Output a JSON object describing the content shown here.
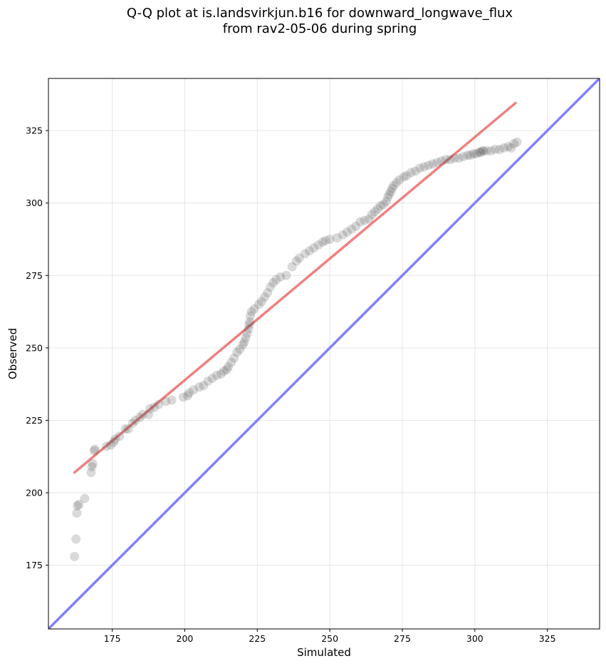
{
  "chart_data": {
    "type": "scatter",
    "title_lines": [
      "Q-Q plot at is.landsvirkjun.b16 for downward_longwave_flux",
      "from rav2-05-06 during spring"
    ],
    "xlabel": "Simulated",
    "ylabel": "Observed",
    "xlim": [
      153,
      343
    ],
    "ylim": [
      153,
      343
    ],
    "xticks": [
      175,
      200,
      225,
      250,
      275,
      300,
      325
    ],
    "yticks": [
      175,
      200,
      225,
      250,
      275,
      300,
      325
    ],
    "xtick_labels": [
      "175",
      "200",
      "225",
      "250",
      "275",
      "300",
      "325"
    ],
    "ytick_labels": [
      "175",
      "200",
      "225",
      "250",
      "275",
      "300",
      "325"
    ],
    "grid": true,
    "colors": {
      "points": "#555555",
      "fit_line": "#f08080",
      "identity_line": "#8080ff",
      "grid": "#e6e6e6"
    },
    "fit_line": {
      "x": [
        162,
        314
      ],
      "y": [
        207,
        334.5
      ]
    },
    "identity_line": {
      "x": [
        153,
        343
      ],
      "y": [
        153,
        343
      ]
    },
    "points": {
      "x": [
        162.0,
        162.5,
        162.8,
        163.0,
        163.5,
        165.5,
        167.7,
        168.0,
        168.3,
        168.8,
        169.0,
        173.0,
        174.5,
        175.5,
        176.0,
        177.5,
        179.5,
        180.5,
        182.0,
        183.0,
        184.5,
        185.5,
        187.5,
        188.0,
        189.5,
        191.0,
        193.5,
        195.5,
        199.5,
        201.0,
        201.5,
        203.0,
        205.0,
        206.5,
        208.0,
        209.5,
        211.0,
        212.5,
        213.5,
        214.5,
        215.0,
        216.0,
        217.0,
        218.0,
        219.0,
        220.0,
        220.5,
        221.0,
        221.5,
        222.0,
        222.2,
        222.4,
        222.6,
        223.0,
        224.0,
        225.5,
        226.5,
        227.5,
        228.5,
        229.5,
        230.5,
        231.5,
        233.0,
        235.0,
        237.0,
        238.5,
        239.5,
        241.5,
        243.0,
        244.5,
        246.0,
        247.5,
        248.5,
        250.0,
        252.5,
        254.5,
        256.0,
        257.5,
        259.0,
        260.5,
        262.0,
        263.5,
        264.5,
        265.5,
        266.5,
        267.5,
        268.5,
        269.5,
        270.0,
        270.5,
        271.0,
        271.5,
        272.0,
        273.0,
        274.0,
        275.5,
        276.5,
        278.0,
        279.5,
        281.0,
        282.5,
        284.0,
        285.5,
        287.0,
        288.5,
        290.0,
        291.5,
        293.0,
        294.5,
        296.0,
        297.5,
        298.5,
        299.5,
        300.5,
        301.5,
        302.0,
        302.5,
        303.0,
        304.0,
        305.5,
        307.0,
        308.5,
        310.0,
        311.5,
        312.5,
        313.5,
        314.5
      ],
      "y": [
        178.0,
        184.0,
        193.0,
        195.5,
        196.0,
        198.0,
        207.0,
        209.0,
        210.0,
        214.5,
        215.0,
        216.0,
        216.5,
        217.5,
        218.5,
        219.5,
        222.0,
        222.0,
        224.0,
        225.0,
        226.0,
        227.0,
        227.0,
        229.0,
        229.5,
        230.5,
        231.5,
        232.0,
        233.0,
        233.5,
        234.5,
        235.5,
        236.5,
        237.0,
        238.5,
        239.5,
        240.5,
        241.0,
        242.0,
        242.5,
        243.5,
        245.0,
        246.5,
        248.5,
        249.5,
        251.0,
        252.0,
        253.5,
        255.0,
        256.5,
        258.0,
        259.0,
        261.0,
        262.5,
        263.5,
        265.0,
        266.0,
        267.5,
        269.0,
        271.0,
        272.5,
        273.5,
        274.5,
        275.0,
        278.0,
        280.0,
        281.0,
        282.5,
        283.5,
        284.5,
        285.5,
        286.5,
        287.0,
        287.5,
        288.0,
        289.0,
        290.0,
        291.0,
        292.0,
        293.5,
        294.0,
        294.5,
        296.0,
        297.0,
        298.0,
        299.0,
        299.5,
        300.5,
        302.0,
        303.0,
        304.0,
        305.0,
        306.0,
        307.0,
        308.0,
        309.0,
        309.5,
        310.5,
        311.0,
        312.0,
        312.5,
        313.0,
        313.5,
        314.0,
        314.5,
        315.0,
        315.0,
        315.5,
        315.5,
        316.0,
        316.5,
        316.5,
        317.0,
        317.0,
        317.5,
        317.5,
        318.0,
        318.0,
        318.0,
        318.0,
        318.5,
        318.5,
        319.0,
        319.5,
        319.0,
        320.5,
        321.0
      ]
    }
  }
}
